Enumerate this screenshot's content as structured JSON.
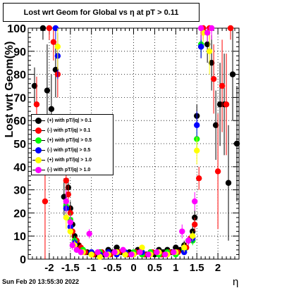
{
  "chart_data": {
    "type": "scatter",
    "title": "Lost wrt Geom for Global vs  η at pT > 0.11",
    "xlabel": "η",
    "ylabel": "Lost wrt Geom(%)",
    "xlim": [
      -2.5,
      2.5
    ],
    "ylim": [
      0,
      100
    ],
    "xticks": [
      -2,
      -1.5,
      -1,
      -0.5,
      0,
      0.5,
      1,
      1.5,
      2
    ],
    "xtick_labels": [
      "-2",
      "-1.5",
      "-1",
      "-0.5",
      "0",
      "0.5",
      "1",
      "1.5",
      "2"
    ],
    "yticks": [
      0,
      10,
      20,
      30,
      40,
      50,
      60,
      70,
      80,
      90,
      100
    ],
    "ytick_labels": [
      "0",
      "10",
      "20",
      "30",
      "40",
      "50",
      "60",
      "70",
      "80",
      "90",
      "100"
    ],
    "grid": true,
    "legend_position": "center-left",
    "series": [
      {
        "name": "(+) with pT/|q| > 0.1",
        "color": "#000000",
        "points": [
          [
            -2.35,
            75,
            8
          ],
          [
            -2.15,
            100,
            5
          ],
          [
            -2.05,
            73,
            20
          ],
          [
            -1.95,
            65,
            15
          ],
          [
            -1.85,
            82,
            12
          ],
          [
            -1.65,
            27,
            8
          ],
          [
            -1.55,
            31,
            4
          ],
          [
            -1.5,
            22,
            3
          ],
          [
            -1.45,
            15,
            3
          ],
          [
            -1.4,
            10,
            2
          ],
          [
            -1.3,
            6,
            2
          ],
          [
            -1.2,
            4,
            1
          ],
          [
            -1.1,
            3,
            1
          ],
          [
            -1.0,
            3,
            1
          ],
          [
            -0.9,
            2,
            1
          ],
          [
            -0.8,
            3,
            1
          ],
          [
            -0.7,
            2,
            1
          ],
          [
            -0.6,
            4,
            1
          ],
          [
            -0.5,
            3,
            1
          ],
          [
            -0.4,
            5,
            1
          ],
          [
            -0.3,
            3,
            1
          ],
          [
            -0.2,
            2,
            1
          ],
          [
            -0.1,
            3,
            1
          ],
          [
            0.0,
            2,
            1
          ],
          [
            0.1,
            4,
            1
          ],
          [
            0.2,
            3,
            1
          ],
          [
            0.3,
            2,
            1
          ],
          [
            0.4,
            3,
            1
          ],
          [
            0.5,
            2,
            1
          ],
          [
            0.6,
            4,
            1
          ],
          [
            0.7,
            3,
            1
          ],
          [
            0.8,
            4,
            1
          ],
          [
            0.9,
            3,
            1
          ],
          [
            1.0,
            5,
            1
          ],
          [
            1.1,
            4,
            1
          ],
          [
            1.2,
            6,
            2
          ],
          [
            1.3,
            8,
            2
          ],
          [
            1.4,
            12,
            3
          ],
          [
            1.45,
            18,
            3
          ],
          [
            1.5,
            62,
            5
          ],
          [
            1.6,
            92,
            5
          ],
          [
            1.75,
            93,
            8
          ],
          [
            1.85,
            85,
            12
          ],
          [
            1.95,
            58,
            15
          ],
          [
            2.05,
            67,
            18
          ],
          [
            2.15,
            67,
            22
          ],
          [
            2.25,
            33,
            25
          ],
          [
            2.35,
            80,
            20
          ],
          [
            2.45,
            50,
            25
          ]
        ]
      },
      {
        "name": "(-) with pT/|q| > 0.1",
        "color": "#ff0000",
        "points": [
          [
            -2.3,
            67,
            12
          ],
          [
            -2.1,
            25,
            25
          ],
          [
            -2.0,
            100,
            5
          ],
          [
            -1.9,
            94,
            8
          ],
          [
            -1.8,
            80,
            10
          ],
          [
            -1.6,
            34,
            8
          ],
          [
            -1.55,
            28,
            4
          ],
          [
            -1.5,
            20,
            3
          ],
          [
            -1.45,
            12,
            3
          ],
          [
            -1.35,
            8,
            2
          ],
          [
            -1.25,
            5,
            2
          ],
          [
            -1.15,
            3,
            1
          ],
          [
            -0.95,
            2,
            1
          ],
          [
            -0.75,
            3,
            1
          ],
          [
            -0.55,
            2,
            1
          ],
          [
            -0.35,
            3,
            1
          ],
          [
            -0.15,
            2,
            1
          ],
          [
            0.05,
            3,
            1
          ],
          [
            0.25,
            2,
            1
          ],
          [
            0.45,
            3,
            1
          ],
          [
            0.65,
            2,
            1
          ],
          [
            0.85,
            3,
            1
          ],
          [
            1.05,
            3,
            1
          ],
          [
            1.25,
            5,
            2
          ],
          [
            1.35,
            9,
            2
          ],
          [
            1.45,
            15,
            3
          ],
          [
            1.55,
            35,
            5
          ],
          [
            1.65,
            100,
            5
          ],
          [
            1.8,
            100,
            5
          ],
          [
            1.9,
            78,
            15
          ],
          [
            2.0,
            38,
            25
          ],
          [
            2.1,
            75,
            20
          ],
          [
            2.2,
            67,
            22
          ],
          [
            2.3,
            100,
            5
          ]
        ]
      },
      {
        "name": "(+) with pT/|q| > 0.5",
        "color": "#00ff00",
        "points": [
          [
            -1.6,
            23,
            5
          ],
          [
            -1.5,
            17,
            3
          ],
          [
            -1.4,
            8,
            2
          ],
          [
            -1.2,
            4,
            1
          ],
          [
            -1.0,
            2,
            1
          ],
          [
            -0.8,
            3,
            1
          ],
          [
            -0.6,
            2,
            1
          ],
          [
            -0.4,
            3,
            1
          ],
          [
            -0.2,
            2,
            1
          ],
          [
            0.0,
            3,
            1
          ],
          [
            0.2,
            2,
            1
          ],
          [
            0.4,
            3,
            1
          ],
          [
            0.6,
            2,
            1
          ],
          [
            0.8,
            3,
            1
          ],
          [
            1.0,
            2,
            1
          ],
          [
            1.2,
            4,
            1
          ],
          [
            1.4,
            8,
            2
          ],
          [
            1.5,
            52,
            6
          ],
          [
            1.6,
            93,
            5
          ]
        ]
      },
      {
        "name": "(-) with pT/|q| > 0.5",
        "color": "#0000ff",
        "points": [
          [
            -1.85,
            100,
            5
          ],
          [
            -1.8,
            88,
            10
          ],
          [
            -1.6,
            22,
            5
          ],
          [
            -1.5,
            14,
            3
          ],
          [
            -1.4,
            7,
            2
          ],
          [
            -1.2,
            3,
            1
          ],
          [
            -1.0,
            3,
            1
          ],
          [
            -0.8,
            2,
            1
          ],
          [
            -0.6,
            3,
            1
          ],
          [
            -0.4,
            2,
            1
          ],
          [
            -0.2,
            3,
            1
          ],
          [
            0.0,
            2,
            1
          ],
          [
            0.2,
            3,
            1
          ],
          [
            0.4,
            2,
            1
          ],
          [
            0.6,
            3,
            1
          ],
          [
            0.8,
            2,
            1
          ],
          [
            1.0,
            3,
            1
          ],
          [
            1.2,
            3,
            1
          ],
          [
            1.4,
            9,
            2
          ],
          [
            1.5,
            58,
            6
          ],
          [
            1.6,
            92,
            5
          ]
        ]
      },
      {
        "name": "(+) with pT/|q| > 1.0",
        "color": "#ffff00",
        "points": [
          [
            -1.8,
            92,
            10
          ],
          [
            -1.6,
            18,
            5
          ],
          [
            -1.5,
            12,
            3
          ],
          [
            -1.4,
            6,
            2
          ],
          [
            -1.2,
            3,
            1
          ],
          [
            -1.0,
            2,
            1
          ],
          [
            -0.8,
            1,
            1
          ],
          [
            -0.6,
            2,
            1
          ],
          [
            -0.4,
            3,
            1
          ],
          [
            -0.2,
            2,
            1
          ],
          [
            0.0,
            2,
            1
          ],
          [
            0.2,
            5,
            1
          ],
          [
            0.4,
            2,
            1
          ],
          [
            0.6,
            3,
            1
          ],
          [
            0.8,
            2,
            1
          ],
          [
            1.0,
            3,
            1
          ],
          [
            1.2,
            5,
            2
          ],
          [
            1.4,
            10,
            2
          ],
          [
            1.5,
            47,
            6
          ],
          [
            1.65,
            98,
            4
          ],
          [
            1.8,
            90,
            10
          ]
        ]
      },
      {
        "name": "(-) with pT/|q| > 1.0",
        "color": "#ff00ff",
        "points": [
          [
            -1.6,
            25,
            5
          ],
          [
            -1.5,
            16,
            3
          ],
          [
            -1.45,
            6,
            2
          ],
          [
            -1.35,
            4,
            1
          ],
          [
            -1.25,
            3,
            1
          ],
          [
            -1.05,
            11,
            2
          ],
          [
            -0.85,
            3,
            1
          ],
          [
            -0.65,
            2,
            1
          ],
          [
            -0.45,
            3,
            1
          ],
          [
            -0.25,
            4,
            1
          ],
          [
            -0.05,
            2,
            1
          ],
          [
            0.15,
            3,
            1
          ],
          [
            0.35,
            2,
            1
          ],
          [
            0.55,
            3,
            1
          ],
          [
            0.75,
            2,
            1
          ],
          [
            0.95,
            3,
            1
          ],
          [
            1.15,
            12,
            3
          ],
          [
            1.3,
            8,
            2
          ],
          [
            1.45,
            25,
            4
          ],
          [
            1.6,
            100,
            5
          ],
          [
            1.75,
            98,
            4
          ],
          [
            1.85,
            100,
            5
          ]
        ]
      }
    ]
  },
  "page": {
    "title": "Lost wrt Geom for Global vs  η at pT > 0.11",
    "ylabel": "Lost wrt Geom(%)",
    "xlabel": "η",
    "footer": "Sun Feb 20 13:55:30 2022"
  },
  "legend": [
    {
      "label": "(+) with pT/|q| > 0.1",
      "color": "#000000"
    },
    {
      "label": "(-) with pT/|q| > 0.1",
      "color": "#ff0000"
    },
    {
      "label": "(+) with pT/|q| > 0.5",
      "color": "#00ff00"
    },
    {
      "label": "(-) with pT/|q| > 0.5",
      "color": "#0000ff"
    },
    {
      "label": "(+) with pT/|q| > 1.0",
      "color": "#ffff00"
    },
    {
      "label": "(-) with pT/|q| > 1.0",
      "color": "#ff00ff"
    }
  ]
}
